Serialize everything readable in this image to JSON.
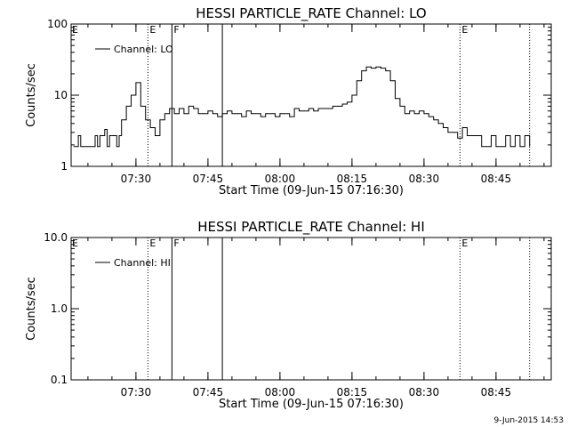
{
  "stamp": "9-Jun-2015 14:53",
  "chart_data": [
    {
      "type": "line",
      "title": "HESSI PARTICLE_RATE Channel: LO",
      "xlabel": "Start Time (09-Jun-15 07:16:30)",
      "ylabel": "Counts/sec",
      "yscale": "log",
      "ylim": [
        1,
        100
      ],
      "yticks": [
        1,
        10,
        100
      ],
      "ytick_labels": [
        "1",
        "10",
        "100"
      ],
      "xlim": [
        "07:16:30",
        "08:56:30"
      ],
      "xticks": [
        "07:30",
        "07:45",
        "08:00",
        "08:15",
        "08:30",
        "08:45"
      ],
      "legend": "Channel: LO",
      "legend_position": "upper-left",
      "markers": [
        {
          "time": "07:32:30",
          "style": "dotted",
          "label": "E"
        },
        {
          "time": "07:37:30",
          "style": "solid",
          "label": "F"
        },
        {
          "time": "07:48:00",
          "style": "solid",
          "label": ""
        },
        {
          "time": "08:37:30",
          "style": "dotted",
          "label": "E"
        },
        {
          "time": "08:52:00",
          "style": "dotted",
          "label": ""
        }
      ],
      "series": [
        {
          "name": "Channel: LO",
          "x": [
            "07:17:00",
            "07:18:00",
            "07:18:30",
            "07:19:00",
            "07:21:00",
            "07:21:30",
            "07:22:00",
            "07:22:30",
            "07:23:00",
            "07:23:30",
            "07:24:00",
            "07:24:30",
            "07:25:00",
            "07:26:00",
            "07:26:30",
            "07:27:00",
            "07:28:00",
            "07:29:00",
            "07:30:00",
            "07:31:00",
            "07:32:00",
            "07:33:00",
            "07:34:00",
            "07:35:00",
            "07:36:00",
            "07:37:00",
            "07:38:00",
            "07:39:00",
            "07:40:00",
            "07:41:00",
            "07:42:00",
            "07:43:00",
            "07:44:00",
            "07:45:00",
            "07:46:00",
            "07:47:00",
            "07:48:00",
            "07:49:00",
            "07:50:00",
            "07:51:00",
            "07:52:00",
            "07:53:00",
            "07:54:00",
            "07:55:00",
            "07:56:00",
            "07:57:00",
            "07:58:00",
            "07:59:00",
            "08:00:00",
            "08:01:00",
            "08:02:00",
            "08:03:00",
            "08:04:00",
            "08:05:00",
            "08:06:00",
            "08:07:00",
            "08:08:00",
            "08:09:00",
            "08:10:00",
            "08:11:00",
            "08:12:00",
            "08:13:00",
            "08:14:00",
            "08:15:00",
            "08:16:00",
            "08:17:00",
            "08:18:00",
            "08:19:00",
            "08:20:00",
            "08:21:00",
            "08:22:00",
            "08:23:00",
            "08:24:00",
            "08:25:00",
            "08:26:00",
            "08:27:00",
            "08:28:00",
            "08:29:00",
            "08:30:00",
            "08:31:00",
            "08:32:00",
            "08:33:00",
            "08:34:00",
            "08:35:00",
            "08:36:00",
            "08:37:00",
            "08:38:00",
            "08:39:00",
            "08:40:00",
            "08:41:00",
            "08:42:00",
            "08:43:00",
            "08:44:00",
            "08:45:00",
            "08:46:00",
            "08:47:00",
            "08:48:00",
            "08:49:00",
            "08:50:00",
            "08:51:00",
            "08:52:00"
          ],
          "y": [
            1.9,
            2.7,
            1.9,
            1.9,
            1.9,
            2.7,
            1.9,
            2.7,
            2.7,
            3.3,
            1.9,
            2.7,
            2.7,
            1.9,
            2.7,
            4.5,
            7.0,
            10.0,
            15.0,
            7.0,
            4.5,
            3.5,
            2.7,
            4.5,
            5.5,
            6.5,
            5.5,
            6.5,
            5.5,
            7.0,
            6.5,
            5.5,
            5.5,
            6.0,
            5.5,
            5.0,
            5.5,
            6.0,
            5.5,
            5.5,
            5.0,
            6.0,
            5.5,
            5.5,
            5.0,
            5.5,
            5.5,
            5.0,
            5.5,
            5.5,
            5.0,
            6.5,
            6.0,
            6.0,
            6.5,
            6.0,
            6.5,
            6.5,
            6.5,
            7.0,
            7.0,
            7.5,
            8.0,
            10.0,
            16.0,
            22.0,
            25.0,
            24.0,
            25.0,
            24.0,
            22.0,
            16.0,
            9.0,
            7.0,
            5.5,
            6.0,
            5.5,
            6.0,
            5.5,
            5.0,
            4.5,
            4.0,
            3.5,
            3.0,
            3.0,
            2.5,
            3.5,
            2.7,
            2.7,
            2.7,
            1.9,
            1.9,
            2.7,
            1.9,
            1.9,
            2.7,
            1.9,
            2.7,
            1.9,
            2.7,
            1.9
          ]
        }
      ]
    },
    {
      "type": "line",
      "title": "HESSI PARTICLE_RATE Channel: HI",
      "xlabel": "Start Time (09-Jun-15 07:16:30)",
      "ylabel": "Counts/sec",
      "yscale": "log",
      "ylim": [
        0.1,
        10
      ],
      "yticks": [
        0.1,
        1.0,
        10.0
      ],
      "ytick_labels": [
        "0.1",
        "1.0",
        "10.0"
      ],
      "xlim": [
        "07:16:30",
        "08:56:30"
      ],
      "xticks": [
        "07:30",
        "07:45",
        "08:00",
        "08:15",
        "08:30",
        "08:45"
      ],
      "legend": "Channel: HI",
      "legend_position": "upper-left",
      "markers": [
        {
          "time": "07:32:30",
          "style": "dotted",
          "label": "E"
        },
        {
          "time": "07:37:30",
          "style": "solid",
          "label": "F"
        },
        {
          "time": "07:48:00",
          "style": "solid",
          "label": ""
        },
        {
          "time": "08:37:30",
          "style": "dotted",
          "label": "E"
        },
        {
          "time": "08:52:00",
          "style": "dotted",
          "label": ""
        }
      ],
      "series": [
        {
          "name": "Channel: HI",
          "x": [],
          "y": []
        }
      ]
    }
  ]
}
